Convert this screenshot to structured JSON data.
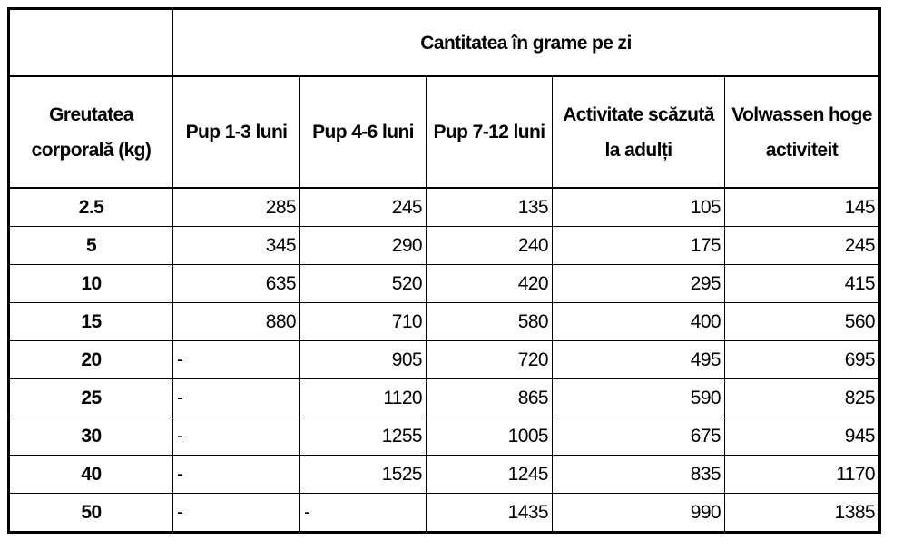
{
  "table": {
    "group_header": "Cantitatea în grame pe zi",
    "columns": [
      "Greutatea corporală (kg)",
      "Pup 1-3 luni",
      "Pup 4-6 luni",
      "Pup 7-12 luni",
      "Activitate scăzută la adulți",
      "Volwassen hoge activiteit"
    ],
    "rows": [
      [
        "2.5",
        "285",
        "245",
        "135",
        "105",
        "145"
      ],
      [
        "5",
        "345",
        "290",
        "240",
        "175",
        "245"
      ],
      [
        "10",
        "635",
        "520",
        "420",
        "295",
        "415"
      ],
      [
        "15",
        "880",
        "710",
        "580",
        "400",
        "560"
      ],
      [
        "20",
        "-",
        "905",
        "720",
        "495",
        "695"
      ],
      [
        "25",
        "-",
        "1120",
        "865",
        "590",
        "825"
      ],
      [
        "30",
        "-",
        "1255",
        "1005",
        "675",
        "945"
      ],
      [
        "40",
        "-",
        "1525",
        "1245",
        "835",
        "1170"
      ],
      [
        "50",
        "-",
        "-",
        "1435",
        "990",
        "1385"
      ]
    ]
  }
}
